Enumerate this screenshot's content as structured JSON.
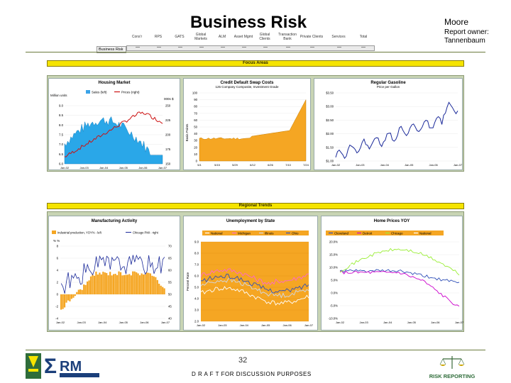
{
  "header": {
    "title": "Business Risk",
    "owner_name": "Moore",
    "owner_label": "Report owner: Tannenbaum",
    "columns": [
      "Cons'r",
      "RPS",
      "GATS",
      "Global Markets",
      "ALM",
      "Asset Mgmt",
      "Global Clients",
      "Transaction Bank",
      "Private Clients",
      "Services",
      "Total"
    ],
    "row_label": "Business Risk",
    "row_values": [
      "—",
      "—",
      "—",
      "—",
      "—",
      "—",
      "—",
      "—",
      "—",
      "—",
      "—"
    ]
  },
  "focus": {
    "banner": "Focus Areas",
    "charts": [
      {
        "title": "Housing Market",
        "legend": [
          "Sales (left)",
          "Prices (right)"
        ],
        "left_unit": "Million units",
        "right_unit": "000s $",
        "y_left_ticks": [
          "9.0",
          "8.5",
          "8.0",
          "7.5",
          "7.0",
          "6.5",
          "6.0"
        ],
        "y_right_ticks": [
          "250",
          "225",
          "200",
          "175",
          "150"
        ],
        "x_ticks": [
          "Jan-02",
          "Jan-03",
          "Jan-04",
          "Jan-05",
          "Jan-06",
          "Jan-07"
        ]
      },
      {
        "title": "Credit Default Swap Costs",
        "subtitle": "125 Company Composite, Investment Grade",
        "ylabel": "Basis Points",
        "y_ticks": [
          "100",
          "90",
          "80",
          "70",
          "60",
          "50",
          "40",
          "30",
          "20",
          "10",
          "0"
        ],
        "x_ticks": [
          "5/1",
          "5/15",
          "5/29",
          "6/12",
          "6/26",
          "7/10",
          "7/24"
        ]
      },
      {
        "title": "Regular Gasoline",
        "subtitle": "Price per Gallon",
        "y_ticks": [
          "$3.50",
          "$3.00",
          "$2.50",
          "$2.00",
          "$1.50",
          "$1.00"
        ],
        "x_ticks": [
          "Jan-02",
          "Jan-03",
          "Jan-04",
          "Jan-05",
          "Jan-06",
          "Jan-07"
        ]
      }
    ]
  },
  "regional": {
    "banner": "Regional Trends",
    "charts": [
      {
        "title": "Manufacturing Activity",
        "legend": [
          "Industrial production, YOY% - left",
          "Chicago PMI - right"
        ],
        "left_unit": "% %",
        "y_left_ticks": [
          "8",
          "6",
          "4",
          "2",
          "0",
          "-2",
          "-4"
        ],
        "y_right_ticks": [
          "70",
          "65",
          "60",
          "55",
          "50",
          "45",
          "40"
        ],
        "x_ticks": [
          "Jan-02",
          "Jan-03",
          "Jan-04",
          "Jan-05",
          "Jan-06",
          "Jan-07"
        ]
      },
      {
        "title": "Unemployment by State",
        "legend": [
          "National",
          "Michigan",
          "Illinois",
          "Ohio"
        ],
        "ylabel": "Percent Rate",
        "y_ticks": [
          "9.0",
          "8.0",
          "7.0",
          "6.0",
          "5.0",
          "4.0",
          "3.0",
          "2.0"
        ],
        "x_ticks": [
          "Jan-02",
          "Jan-03",
          "Jan-04",
          "Jan-05",
          "Jan-06",
          "Jan-07"
        ]
      },
      {
        "title": "Home Prices YOY",
        "legend": [
          "Cleveland",
          "Detroit",
          "Chicago",
          "National"
        ],
        "y_ticks": [
          "20.0%",
          "15.0%",
          "10.0%",
          "5.0%",
          "0.0%",
          "-5.0%",
          "-10.0%"
        ],
        "x_ticks": [
          "Jan-02",
          "Jan-03",
          "Jan-04",
          "Jan-05",
          "Jan-06",
          "Jan-07"
        ]
      }
    ]
  },
  "footer": {
    "page_number": "32",
    "draft_note": "D R A F T  FOR DISCUSSION PURPOSES",
    "left_logo_text": "RM",
    "right_logo_text": "RISK REPORTING"
  },
  "colors": {
    "banner": "#f5e400",
    "frame": "#c8d4b4",
    "orange": "#f5a623",
    "blue": "#2f4fb8",
    "red": "#cc1111"
  }
}
